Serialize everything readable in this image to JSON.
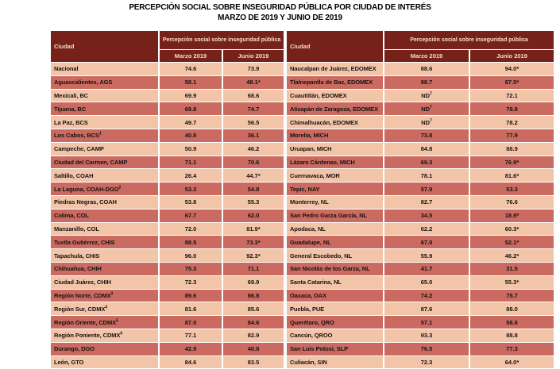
{
  "title": {
    "line1": "PERCEPCIÓN SOCIAL SOBRE INSEGURIDAD PÚBLICA POR CIUDAD DE INTERÉS",
    "line2": "MARZO DE 2019 Y JUNIO DE 2019"
  },
  "columns": {
    "ciudad": "Ciudad",
    "group": "Percepción social sobre inseguridad pública",
    "marzo": "Marzo 2019",
    "junio": "Junio 2019"
  },
  "colors": {
    "header_bg": "#76221A",
    "header_text": "#F4DCC6",
    "row_light": "#F2C5A9",
    "row_dark": "#CA6A60",
    "grid": "#FFFFFF",
    "body_text": "#181212"
  },
  "left_table": {
    "rows": [
      {
        "city": "Nacional",
        "bold": true,
        "mar": "74.6",
        "jun": "73.9"
      },
      {
        "city": "Aguascalientes, AGS",
        "mar": "58.1",
        "jun": "48.1*"
      },
      {
        "city": "Mexicali, BC",
        "mar": "69.9",
        "jun": "68.6"
      },
      {
        "city": "Tijuana, BC",
        "mar": "69.8",
        "jun": "74.7"
      },
      {
        "city": "La Paz, BCS",
        "mar": "49.7",
        "jun": "56.5"
      },
      {
        "city": "Los Cabos, BCS",
        "city_sup": "1",
        "mar": "40.8",
        "jun": "36.1"
      },
      {
        "city": "Campeche, CAMP",
        "mar": "50.9",
        "jun": "46.2"
      },
      {
        "city": "Ciudad del Carmen, CAMP",
        "mar": "71.1",
        "jun": "70.6"
      },
      {
        "city": "Saltillo, COAH",
        "mar": "26.4",
        "jun": "44.7*"
      },
      {
        "city": "La Laguna, COAH-DGO",
        "city_sup": "2",
        "mar": "53.3",
        "jun": "54.8"
      },
      {
        "city": "Piedras Negras, COAH",
        "mar": "53.8",
        "jun": "55.3"
      },
      {
        "city": "Colima, COL",
        "mar": "67.7",
        "jun": "62.0"
      },
      {
        "city": "Manzanillo, COL",
        "mar": "72.0",
        "jun": "81.9*"
      },
      {
        "city": "Tuxtla Gutiérrez, CHIS",
        "mar": "88.5",
        "jun": "73.3*"
      },
      {
        "city": "Tapachula, CHIS",
        "mar": "96.0",
        "jun": "92.3*"
      },
      {
        "city": "Chihuahua, CHIH",
        "mar": "75.3",
        "jun": "71.1"
      },
      {
        "city": "Ciudad Juárez, CHIH",
        "mar": "72.3",
        "jun": "69.9"
      },
      {
        "city": "Región Norte, CDMX",
        "city_sup": "3",
        "mar": "89.6",
        "jun": "86.8"
      },
      {
        "city": "Región Sur, CDMX",
        "city_sup": "4",
        "mar": "81.6",
        "jun": "85.6"
      },
      {
        "city": "Región Oriente, CDMX",
        "city_sup": "5",
        "mar": "87.0",
        "jun": "84.6"
      },
      {
        "city": "Región Poniente, CDMX",
        "city_sup": "6",
        "mar": "77.1",
        "jun": "82.9"
      },
      {
        "city": "Durango, DGO",
        "mar": "42.9",
        "jun": "40.8"
      },
      {
        "city": "León, GTO",
        "mar": "84.6",
        "jun": "83.5"
      }
    ]
  },
  "right_table": {
    "rows": [
      {
        "city": "Naucalpan de Juárez, EDOMEX",
        "mar": "88.6",
        "jun": "94.0*"
      },
      {
        "city": "Tlalnepantla de Baz, EDOMEX",
        "mar": "88.7",
        "jun": "87.5*"
      },
      {
        "city": "Cuautitlán, EDOMEX",
        "mar": "ND",
        "mar_sup": "7",
        "jun": "72.1"
      },
      {
        "city": "Atizapán de Zaragoza, EDOMEX",
        "mar": "ND",
        "mar_sup": "7",
        "jun": "78.8"
      },
      {
        "city": "Chimalhuacán, EDOMEX",
        "mar": "ND",
        "mar_sup": "7",
        "jun": "78.2"
      },
      {
        "city": "Morelia, MICH",
        "mar": "73.8",
        "jun": "77.9"
      },
      {
        "city": "Uruapan, MICH",
        "mar": "84.8",
        "jun": "88.9"
      },
      {
        "city": "Lázaro Cárdenas, MICH",
        "mar": "69.3",
        "jun": "76.9*"
      },
      {
        "city": "Cuernavaca, MOR",
        "mar": "78.1",
        "jun": "81.6*"
      },
      {
        "city": "Tepic, NAY",
        "mar": "57.9",
        "jun": "53.3"
      },
      {
        "city": "Monterrey, NL",
        "mar": "82.7",
        "jun": "76.6"
      },
      {
        "city": "San Pedro Garza García, NL",
        "mar": "34.5",
        "jun": "18.9*"
      },
      {
        "city": "Apodaca, NL",
        "mar": "62.2",
        "jun": "60.3*"
      },
      {
        "city": "Guadalupe, NL",
        "mar": "67.0",
        "jun": "52.1*"
      },
      {
        "city": "General Escobedo, NL",
        "mar": "55.9",
        "jun": "46.2*"
      },
      {
        "city": "San Nicolás de los Garza, NL",
        "mar": "41.7",
        "jun": "31.5"
      },
      {
        "city": "Santa Catarina, NL",
        "mar": "65.0",
        "jun": "55.3*"
      },
      {
        "city": "Oaxaca, OAX",
        "mar": "74.2",
        "jun": "75.7"
      },
      {
        "city": "Puebla, PUE",
        "mar": "87.6",
        "jun": "88.0"
      },
      {
        "city": "Querétaro, QRO",
        "mar": "57.1",
        "jun": "58.6"
      },
      {
        "city": "Cancún, QROO",
        "mar": "93.3",
        "jun": "88.8"
      },
      {
        "city": "San Luis Potosí, SLP",
        "mar": "76.5",
        "jun": "77.3"
      },
      {
        "city": "Culiacán, SIN",
        "mar": "72.3",
        "jun": "64.0*"
      }
    ]
  },
  "chart_data": {
    "type": "table",
    "title": "PERCEPCIÓN SOCIAL SOBRE INSEGURIDAD PÚBLICA POR CIUDAD DE INTERÉS — MARZO DE 2019 Y JUNIO DE 2019",
    "columns": [
      "Ciudad",
      "Marzo 2019",
      "Junio 2019"
    ],
    "rows": [
      [
        "Nacional",
        "74.6",
        "73.9"
      ],
      [
        "Aguascalientes, AGS",
        "58.1",
        "48.1*"
      ],
      [
        "Mexicali, BC",
        "69.9",
        "68.6"
      ],
      [
        "Tijuana, BC",
        "69.8",
        "74.7"
      ],
      [
        "La Paz, BCS",
        "49.7",
        "56.5"
      ],
      [
        "Los Cabos, BCS¹",
        "40.8",
        "36.1"
      ],
      [
        "Campeche, CAMP",
        "50.9",
        "46.2"
      ],
      [
        "Ciudad del Carmen, CAMP",
        "71.1",
        "70.6"
      ],
      [
        "Saltillo, COAH",
        "26.4",
        "44.7*"
      ],
      [
        "La Laguna, COAH-DGO²",
        "53.3",
        "54.8"
      ],
      [
        "Piedras Negras, COAH",
        "53.8",
        "55.3"
      ],
      [
        "Colima, COL",
        "67.7",
        "62.0"
      ],
      [
        "Manzanillo, COL",
        "72.0",
        "81.9*"
      ],
      [
        "Tuxtla Gutiérrez, CHIS",
        "88.5",
        "73.3*"
      ],
      [
        "Tapachula, CHIS",
        "96.0",
        "92.3*"
      ],
      [
        "Chihuahua, CHIH",
        "75.3",
        "71.1"
      ],
      [
        "Ciudad Juárez, CHIH",
        "72.3",
        "69.9"
      ],
      [
        "Región Norte, CDMX³",
        "89.6",
        "86.8"
      ],
      [
        "Región Sur, CDMX⁴",
        "81.6",
        "85.6"
      ],
      [
        "Región Oriente, CDMX⁵",
        "87.0",
        "84.6"
      ],
      [
        "Región Poniente, CDMX⁶",
        "77.1",
        "82.9"
      ],
      [
        "Durango, DGO",
        "42.9",
        "40.8"
      ],
      [
        "León, GTO",
        "84.6",
        "83.5"
      ],
      [
        "Naucalpan de Juárez, EDOMEX",
        "88.6",
        "94.0*"
      ],
      [
        "Tlalnepantla de Baz, EDOMEX",
        "88.7",
        "87.5*"
      ],
      [
        "Cuautitlán, EDOMEX",
        "ND⁷",
        "72.1"
      ],
      [
        "Atizapán de Zaragoza, EDOMEX",
        "ND⁷",
        "78.8"
      ],
      [
        "Chimalhuacán, EDOMEX",
        "ND⁷",
        "78.2"
      ],
      [
        "Morelia, MICH",
        "73.8",
        "77.9"
      ],
      [
        "Uruapan, MICH",
        "84.8",
        "88.9"
      ],
      [
        "Lázaro Cárdenas, MICH",
        "69.3",
        "76.9*"
      ],
      [
        "Cuernavaca, MOR",
        "78.1",
        "81.6*"
      ],
      [
        "Tepic, NAY",
        "57.9",
        "53.3"
      ],
      [
        "Monterrey, NL",
        "82.7",
        "76.6"
      ],
      [
        "San Pedro Garza García, NL",
        "34.5",
        "18.9*"
      ],
      [
        "Apodaca, NL",
        "62.2",
        "60.3*"
      ],
      [
        "Guadalupe, NL",
        "67.0",
        "52.1*"
      ],
      [
        "General Escobedo, NL",
        "55.9",
        "46.2*"
      ],
      [
        "San Nicolás de los Garza, NL",
        "41.7",
        "31.5"
      ],
      [
        "Santa Catarina, NL",
        "65.0",
        "55.3*"
      ],
      [
        "Oaxaca, OAX",
        "74.2",
        "75.7"
      ],
      [
        "Puebla, PUE",
        "87.6",
        "88.0"
      ],
      [
        "Querétaro, QRO",
        "57.1",
        "58.6"
      ],
      [
        "Cancún, QROO",
        "93.3",
        "88.8"
      ],
      [
        "San Luis Potosí, SLP",
        "76.5",
        "77.3"
      ],
      [
        "Culiacán, SIN",
        "72.3",
        "64.0*"
      ]
    ]
  }
}
